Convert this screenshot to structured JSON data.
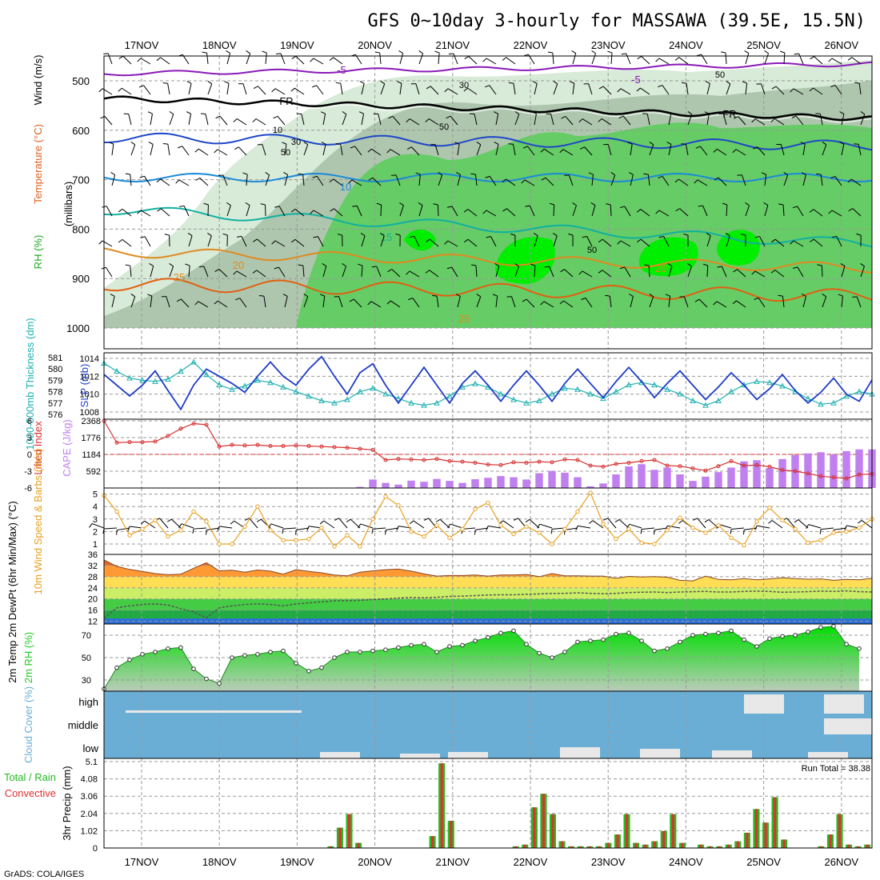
{
  "title": "GFS 0~10day 3-hourly for MASSAWA (39.5E, 15.5N)",
  "dates": [
    "17NOV",
    "18NOV",
    "19NOV",
    "20NOV",
    "21NOV",
    "22NOV",
    "23NOV",
    "24NOV",
    "25NOV",
    "26NOV"
  ],
  "credit": "GrADS: COLA/IGES",
  "colors": {
    "rh_light": "#d8ead8",
    "rh_mid": "#aec6ae",
    "rh_green": "#66cc66",
    "rh_bright": "#00ee00",
    "slp": "#1e3cc8",
    "thick": "#20b0b0",
    "li": "#d83030",
    "cape": "#c080f0",
    "wind": "#e8a020",
    "temp": "#e06010",
    "rh2m": "#22cc22",
    "cloud_bg": "#6aaed6",
    "cloud": "#e8e8e8",
    "precip_total": "#22bb22",
    "precip_conv": "#e03030"
  },
  "chart_data": [
    {
      "type": "heatmap",
      "name": "upper-air",
      "ylabel_rh": "RH (%)",
      "ylabel_temp": "Temperature (°C)",
      "ylabel_wind": "Wind (m/s)",
      "ylabel_p": "(millibars)",
      "yticks": [
        500,
        600,
        700,
        800,
        900,
        1000
      ],
      "ylim": [
        450,
        1050
      ],
      "isotherm_labels": [
        {
          "text": "-5",
          "color": "#8a1ab8"
        },
        {
          "text": "-5",
          "color": "#8a1ab8"
        },
        {
          "text": "FR",
          "color": "#000000"
        },
        {
          "text": "FR",
          "color": "#000000"
        },
        {
          "text": "10",
          "color": "#1a8ad8"
        },
        {
          "text": "15",
          "color": "#10b0a0"
        },
        {
          "text": "20",
          "color": "#e08a20"
        },
        {
          "text": "20",
          "color": "#e08a20"
        },
        {
          "text": "25",
          "color": "#e08a20"
        },
        {
          "text": "25",
          "color": "#e08a20"
        }
      ],
      "rh_labels": [
        "10",
        "30",
        "50",
        "30",
        "50",
        "50",
        "50"
      ]
    },
    {
      "type": "line",
      "name": "slp-thickness",
      "ylabel": "SLP (mb)",
      "ylabel2": "1000-500mb Thickness (dm)",
      "yticks_slp": [
        1008,
        1010,
        1012,
        1014
      ],
      "yticks_thick": [
        576,
        577,
        578,
        579,
        580,
        581
      ],
      "series": [
        {
          "name": "SLP",
          "values": [
            1012.2,
            1011.0,
            1009.8,
            1011.0,
            1012.6,
            1010.4,
            1008.3,
            1011.0,
            1012.8,
            1012.0,
            1011.2,
            1010.2,
            1012.0,
            1013.6,
            1012.0,
            1011.0,
            1012.8,
            1014.2,
            1012.0,
            1010.0,
            1012.4,
            1013.4,
            1011.0,
            1009.0,
            1011.0,
            1013.0,
            1011.0,
            1009.0,
            1011.2,
            1012.6,
            1011.0,
            1009.2,
            1011.0,
            1012.6,
            1011.0,
            1009.2,
            1011.2,
            1012.8,
            1011.2,
            1009.6,
            1011.4,
            1013.0,
            1011.4,
            1009.6,
            1011.2,
            1012.6,
            1011.0,
            1009.4,
            1010.8,
            1012.4,
            1011.0,
            1009.4,
            1010.6,
            1012.2,
            1010.4,
            1009.0,
            1010.2,
            1011.8,
            1010.0,
            1009.2,
            1011.6
          ]
        },
        {
          "name": "Thickness",
          "values": [
            580.5,
            579.8,
            579.2,
            579.0,
            578.9,
            579.1,
            579.8,
            580.6,
            579.5,
            578.6,
            578.2,
            578.5,
            579.0,
            578.8,
            578.4,
            578.0,
            577.6,
            577.2,
            577.0,
            577.3,
            578.0,
            578.3,
            577.8,
            577.4,
            577.0,
            576.8,
            577.0,
            577.6,
            578.4,
            578.7,
            578.4,
            577.8,
            577.3,
            577.0,
            577.2,
            577.8,
            578.3,
            578.2,
            577.8,
            577.4,
            578.0,
            578.6,
            578.8,
            578.6,
            578.2,
            577.8,
            577.2,
            576.8,
            577.2,
            578.0,
            578.6,
            578.9,
            578.8,
            578.5,
            578.0,
            577.4,
            576.9,
            577.0,
            577.6,
            578.0,
            577.8
          ]
        }
      ]
    },
    {
      "type": "bar",
      "name": "cape-li",
      "ylabel": "CAPE (J/kg)",
      "ylabel2": "Lifted Index",
      "yticks_cape": [
        592,
        1184,
        1776,
        2368
      ],
      "yticks_li": [
        6,
        3,
        0,
        -3,
        -6
      ],
      "series": [
        {
          "name": "CAPE",
          "values": [
            0,
            0,
            0,
            0,
            0,
            0,
            0,
            0,
            0,
            0,
            0,
            0,
            0,
            0,
            0,
            0,
            0,
            0,
            0,
            0,
            40,
            300,
            180,
            120,
            260,
            220,
            320,
            250,
            180,
            310,
            360,
            420,
            380,
            300,
            520,
            600,
            540,
            380,
            60,
            160,
            480,
            760,
            840,
            640,
            720,
            480,
            250,
            400,
            560,
            720,
            940,
            980,
            700,
            1020,
            1160,
            1220,
            1260,
            1180,
            1300,
            1360,
            1360
          ]
        },
        {
          "name": "Lifted Index",
          "values": [
            6.0,
            2.1,
            2.2,
            2.2,
            2.3,
            3.3,
            4.6,
            5.5,
            5.3,
            1.4,
            1.7,
            1.6,
            1.7,
            1.5,
            1.5,
            1.6,
            1.5,
            1.4,
            1.3,
            1.2,
            1.0,
            0.8,
            -1.0,
            -0.8,
            -0.9,
            -1.0,
            -0.8,
            -1.2,
            -1.3,
            -1.5,
            -1.8,
            -1.9,
            -1.4,
            -1.5,
            -1.3,
            -1.4,
            -0.9,
            -1.0,
            -2.0,
            -2.2,
            -1.7,
            -1.5,
            -1.2,
            -1.0,
            -2.0,
            -2.1,
            -2.5,
            -2.9,
            -2.1,
            -1.2,
            -2.0,
            -1.9,
            -2.2,
            -2.8,
            -3.0,
            -3.4,
            -3.9,
            -4.1,
            -4.3,
            -3.6,
            -3.5
          ]
        }
      ]
    },
    {
      "type": "line",
      "name": "wind10m",
      "ylabel": "10m Wind Speed & Barbs (m/s)",
      "yticks": [
        1,
        2,
        3,
        4,
        5
      ],
      "values": [
        4.9,
        3.6,
        1.7,
        2.2,
        2.9,
        1.6,
        2.1,
        3.6,
        2.8,
        1.0,
        1.0,
        2.4,
        4.0,
        2.1,
        1.3,
        1.3,
        1.4,
        2.3,
        0.8,
        1.7,
        0.8,
        3.0,
        4.8,
        4.1,
        2.0,
        1.6,
        2.5,
        1.5,
        2.2,
        3.8,
        4.3,
        2.5,
        1.8,
        2.4,
        1.9,
        1.0,
        2.2,
        3.6,
        5.1,
        2.6,
        1.4,
        2.2,
        1.1,
        1.0,
        2.1,
        3.1,
        2.3,
        1.9,
        2.5,
        1.5,
        0.9,
        2.8,
        3.9,
        2.9,
        2.2,
        1.1,
        1.3,
        1.9,
        2.0,
        2.3,
        3.0
      ]
    },
    {
      "type": "area",
      "name": "temp2m",
      "ylabel": "2m Temp 2m DewPt (6hr Min/Max) (°C)",
      "yticks": [
        12,
        16,
        20,
        24,
        28,
        32,
        36
      ],
      "series": [
        {
          "name": "2m Temp",
          "values": [
            34.0,
            31.7,
            30.6,
            29.9,
            29.1,
            28.7,
            28.9,
            31.0,
            33.0,
            30.1,
            30.3,
            29.6,
            30.4,
            30.0,
            28.9,
            30.5,
            29.9,
            29.4,
            28.6,
            28.3,
            29.6,
            30.1,
            30.5,
            30.7,
            30.0,
            29.0,
            28.2,
            28.4,
            28.4,
            28.6,
            28.2,
            28.6,
            28.6,
            28.8,
            28.0,
            29.1,
            28.3,
            28.3,
            28.2,
            28.2,
            27.4,
            28.1,
            27.9,
            28.0,
            27.8,
            26.7,
            26.5,
            28.2,
            27.0,
            26.9,
            27.3,
            26.9,
            27.2,
            27.6,
            27.3,
            27.1,
            27.2,
            26.7,
            27.0,
            26.9,
            27.4
          ]
        },
        {
          "name": "2m DewPt",
          "values": [
            13.0,
            16.8,
            17.5,
            18.0,
            18.2,
            17.8,
            16.5,
            15.4,
            13.2,
            16.8,
            17.5,
            18.0,
            18.2,
            18.0,
            17.5,
            18.2,
            18.6,
            19.0,
            19.3,
            19.4,
            19.5,
            19.8,
            20.0,
            20.3,
            20.5,
            20.4,
            20.6,
            20.9,
            21.0,
            21.2,
            21.4,
            21.5,
            21.5,
            21.7,
            21.8,
            22.0,
            22.0,
            22.2,
            22.0,
            21.9,
            22.0,
            22.3,
            22.4,
            22.5,
            22.3,
            22.5,
            22.6,
            22.7,
            22.5,
            22.5,
            22.7,
            22.8,
            22.7,
            22.4,
            22.5,
            22.6,
            22.8,
            22.7,
            22.9,
            22.6,
            22.5
          ]
        }
      ]
    },
    {
      "type": "area",
      "name": "rh2m",
      "ylabel": "2m RH (%)",
      "yticks": [
        30,
        50,
        70
      ],
      "values": [
        22,
        41,
        48,
        53,
        55,
        58,
        59,
        40,
        31,
        27,
        50,
        52,
        53,
        55,
        56,
        45,
        38,
        41,
        50,
        55,
        55,
        56,
        57,
        59,
        61,
        62,
        55,
        60,
        61,
        65,
        68,
        72,
        74,
        62,
        54,
        50,
        55,
        64,
        65,
        66,
        71,
        72,
        65,
        56,
        58,
        64,
        70,
        71,
        72,
        74,
        66,
        60,
        67,
        69,
        70,
        73,
        77,
        78,
        62,
        58
      ]
    },
    {
      "type": "heatmap",
      "name": "cloud",
      "ylabel": "Cloud Cover (%)",
      "row_labels": [
        "high",
        "middle",
        "low"
      ]
    },
    {
      "type": "bar",
      "name": "precip",
      "ylabel": "3hr Precip (mm)",
      "legend_total": "Total / Rain",
      "legend_conv": "Convective",
      "run_total": "Run Total = 38.38",
      "yticks": [
        0,
        1.02,
        2.04,
        3.06,
        4.08,
        5.1
      ],
      "series": [
        {
          "name": "Total",
          "values": [
            0,
            0,
            0,
            0,
            0,
            0,
            0,
            0,
            0,
            0,
            0,
            0,
            0,
            0,
            0,
            0,
            0,
            0,
            0,
            0,
            0,
            0,
            0,
            0,
            0.1,
            1.2,
            2.0,
            0.3,
            0,
            0,
            0,
            0,
            0,
            0,
            0,
            0.7,
            5.0,
            1.6,
            0,
            0,
            0,
            0,
            0,
            0,
            0.1,
            0.2,
            2.4,
            3.2,
            2.0,
            0.4,
            0.1,
            0.1,
            0.1,
            0.1,
            0.3,
            0.8,
            2.0,
            0.3,
            0.2,
            0.4,
            1.0,
            2.0,
            0.3,
            0,
            0.2,
            0.1,
            0.1,
            0.2,
            0.4,
            0.9,
            2.3,
            1.5,
            3.0,
            0.5,
            0,
            0,
            0,
            0.1,
            0.8,
            2.0,
            0.2,
            0.1,
            0.2
          ]
        }
      ]
    }
  ]
}
